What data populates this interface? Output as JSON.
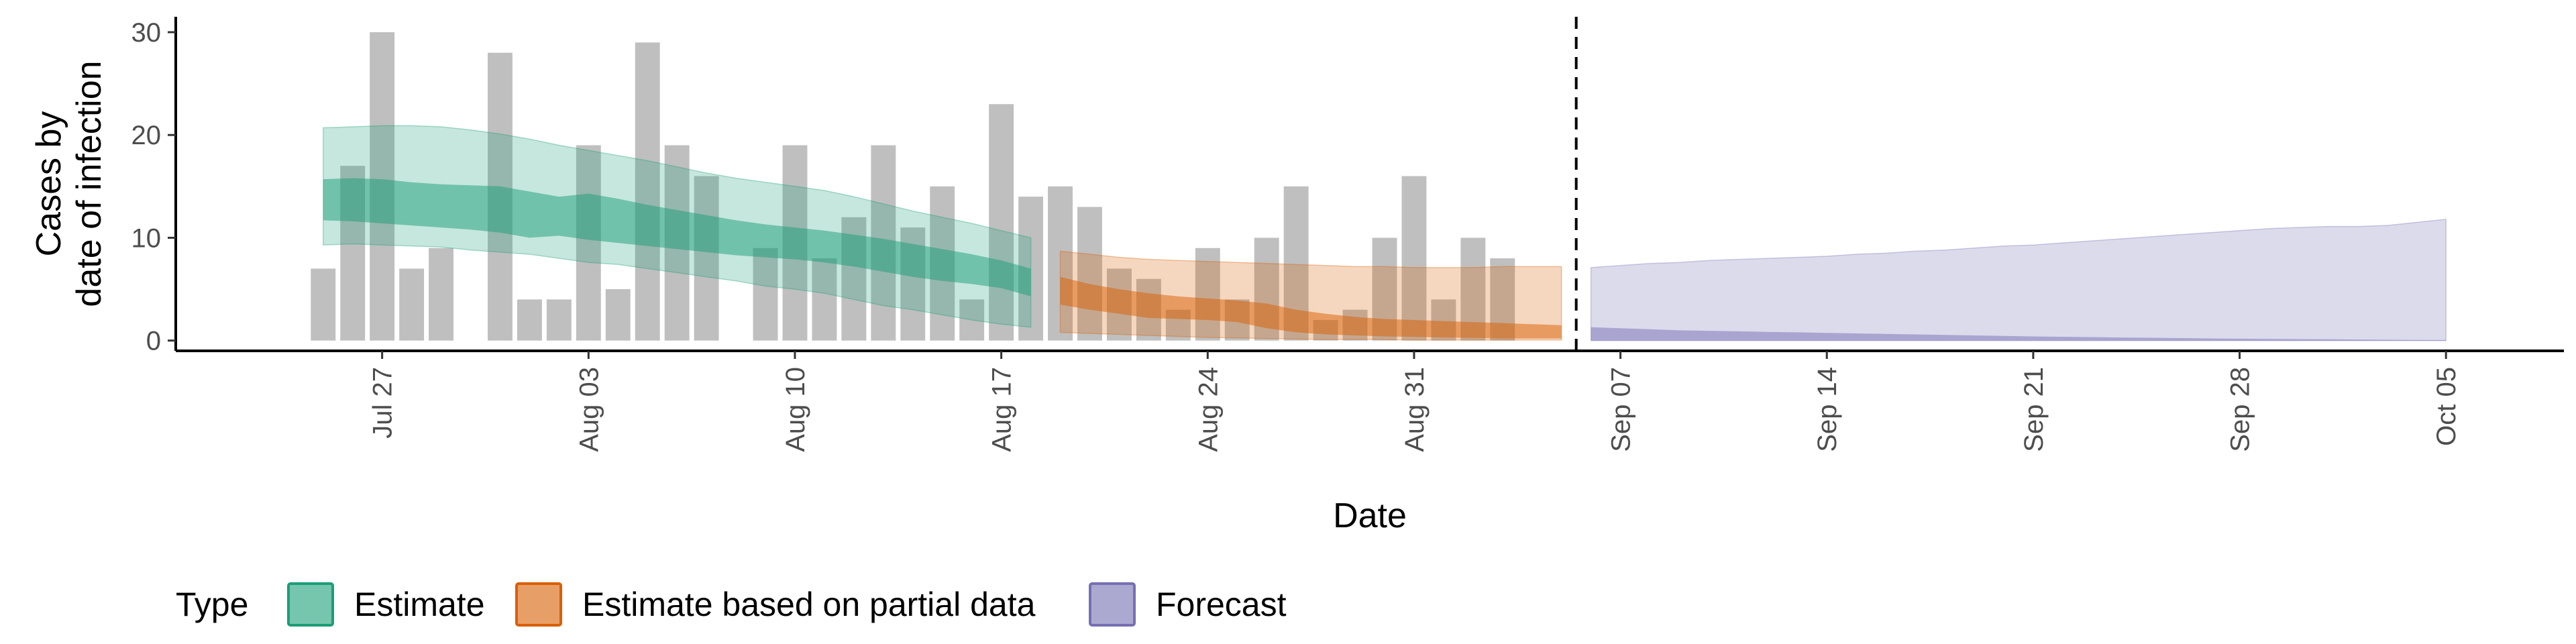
{
  "chart_data": {
    "type": "bar",
    "xlabel": "Date",
    "ylabel_lines": [
      "Cases by",
      "date of infection"
    ],
    "ylim": [
      -1,
      31.5
    ],
    "yticks": [
      0,
      10,
      20,
      30
    ],
    "xlim": [
      "2020-07-20",
      "2020-10-09"
    ],
    "x_ticks": [
      {
        "date": "2020-07-27",
        "label": "Jul 27"
      },
      {
        "date": "2020-08-03",
        "label": "Aug 03"
      },
      {
        "date": "2020-08-10",
        "label": "Aug 10"
      },
      {
        "date": "2020-08-17",
        "label": "Aug 17"
      },
      {
        "date": "2020-08-24",
        "label": "Aug 24"
      },
      {
        "date": "2020-08-31",
        "label": "Aug 31"
      },
      {
        "date": "2020-09-07",
        "label": "Sep 07"
      },
      {
        "date": "2020-09-14",
        "label": "Sep 14"
      },
      {
        "date": "2020-09-21",
        "label": "Sep 21"
      },
      {
        "date": "2020-09-28",
        "label": "Sep 28"
      },
      {
        "date": "2020-10-05",
        "label": "Oct 05"
      }
    ],
    "forecast_start": "2020-09-06",
    "observed_cases": {
      "start_date": "2020-07-25",
      "values": [
        7,
        17,
        30,
        7,
        9,
        0,
        28,
        4,
        4,
        19,
        5,
        29,
        19,
        16,
        0,
        9,
        19,
        8,
        12,
        19,
        11,
        15,
        4,
        23,
        14,
        15,
        13,
        7,
        6,
        3,
        9,
        4,
        10,
        15,
        2,
        3,
        10,
        16,
        4,
        10,
        8
      ]
    },
    "series": [
      {
        "name": "Estimate",
        "start_date": "2020-07-25",
        "lower90": [
          9.3,
          9.4,
          9.3,
          9.2,
          9.1,
          8.8,
          8.6,
          8.4,
          8.0,
          7.6,
          7.4,
          7.0,
          6.6,
          6.2,
          5.8,
          5.3,
          5.0,
          4.6,
          4.0,
          3.4,
          3.0,
          2.5,
          2.0,
          1.6,
          1.3
        ],
        "upper90": [
          20.7,
          20.8,
          20.9,
          20.9,
          20.8,
          20.5,
          20.1,
          19.6,
          19.0,
          18.5,
          18.0,
          17.5,
          16.9,
          16.3,
          15.8,
          15.4,
          15.0,
          14.6,
          14.0,
          13.3,
          12.6,
          12.0,
          11.4,
          10.7,
          10.0
        ],
        "lower50": [
          11.7,
          11.6,
          11.4,
          11.2,
          11.0,
          10.8,
          10.5,
          10.0,
          10.2,
          9.8,
          9.5,
          9.2,
          8.9,
          8.6,
          8.3,
          8.1,
          7.9,
          7.6,
          7.2,
          6.7,
          6.2,
          5.8,
          5.5,
          5.1,
          4.3
        ],
        "upper50": [
          15.7,
          15.8,
          15.7,
          15.4,
          15.2,
          15.1,
          15.0,
          14.5,
          14.0,
          14.3,
          13.8,
          13.2,
          12.7,
          12.2,
          11.7,
          11.3,
          11.0,
          10.7,
          10.3,
          9.9,
          9.4,
          8.9,
          8.4,
          7.8,
          7.0
        ]
      },
      {
        "name": "Estimate based on partial data",
        "start_date": "2020-08-19",
        "lower90": [
          0.8,
          0.7,
          0.6,
          0.5,
          0.4,
          0.3,
          0.25,
          0.2,
          0.15,
          0.1,
          0.1,
          0.1,
          0.05,
          0.05,
          0.05,
          0.05,
          0.05,
          0.05
        ],
        "upper90": [
          8.7,
          8.4,
          8.1,
          7.9,
          7.8,
          7.7,
          7.6,
          7.5,
          7.4,
          7.3,
          7.2,
          7.2,
          7.1,
          7.1,
          7.1,
          7.2,
          7.2,
          7.2
        ],
        "lower50": [
          3.5,
          3.0,
          2.6,
          2.2,
          2.1,
          2.0,
          1.8,
          1.2,
          0.8,
          0.6,
          0.5,
          0.4,
          0.35,
          0.3,
          0.25,
          0.2,
          0.2,
          0.2
        ],
        "upper50": [
          6.2,
          5.5,
          5.0,
          4.6,
          4.3,
          4.1,
          3.9,
          3.6,
          3.0,
          2.6,
          2.3,
          2.1,
          2.0,
          1.9,
          1.8,
          1.7,
          1.6,
          1.5
        ]
      },
      {
        "name": "Forecast",
        "start_date": "2020-09-06",
        "lower90": [
          0,
          0,
          0,
          0,
          0,
          0,
          0,
          0,
          0,
          0,
          0,
          0,
          0,
          0,
          0,
          0,
          0,
          0,
          0,
          0,
          0,
          0,
          0,
          0,
          0,
          0,
          0,
          0,
          0,
          0
        ],
        "upper90": [
          7.1,
          7.3,
          7.5,
          7.6,
          7.8,
          7.9,
          8.0,
          8.1,
          8.2,
          8.4,
          8.5,
          8.7,
          8.8,
          9.0,
          9.2,
          9.3,
          9.5,
          9.7,
          9.9,
          10.1,
          10.3,
          10.5,
          10.7,
          10.9,
          11.0,
          11.1,
          11.1,
          11.2,
          11.5,
          11.8
        ],
        "lower50": [
          0,
          0,
          0,
          0,
          0,
          0,
          0,
          0,
          0,
          0,
          0,
          0,
          0,
          0,
          0,
          0,
          0,
          0,
          0,
          0,
          0,
          0,
          0,
          0,
          0,
          0,
          0,
          0,
          0,
          0
        ],
        "upper50": [
          1.3,
          1.2,
          1.1,
          1.0,
          0.95,
          0.9,
          0.85,
          0.8,
          0.75,
          0.7,
          0.65,
          0.6,
          0.55,
          0.5,
          0.45,
          0.4,
          0.37,
          0.34,
          0.3,
          0.27,
          0.24,
          0.21,
          0.18,
          0.16,
          0.14,
          0.12,
          0.1,
          0.08,
          0.06,
          0.05
        ]
      }
    ],
    "colors": {
      "observed": "#bfbfbf",
      "Estimate": "#1b9e77",
      "Estimate based on partial data": "#d95f02",
      "Forecast": "#7570b3"
    },
    "legend": {
      "title": "Type",
      "position": "bottom",
      "entries": [
        "Estimate",
        "Estimate based on partial data",
        "Forecast"
      ]
    },
    "grid": false
  }
}
